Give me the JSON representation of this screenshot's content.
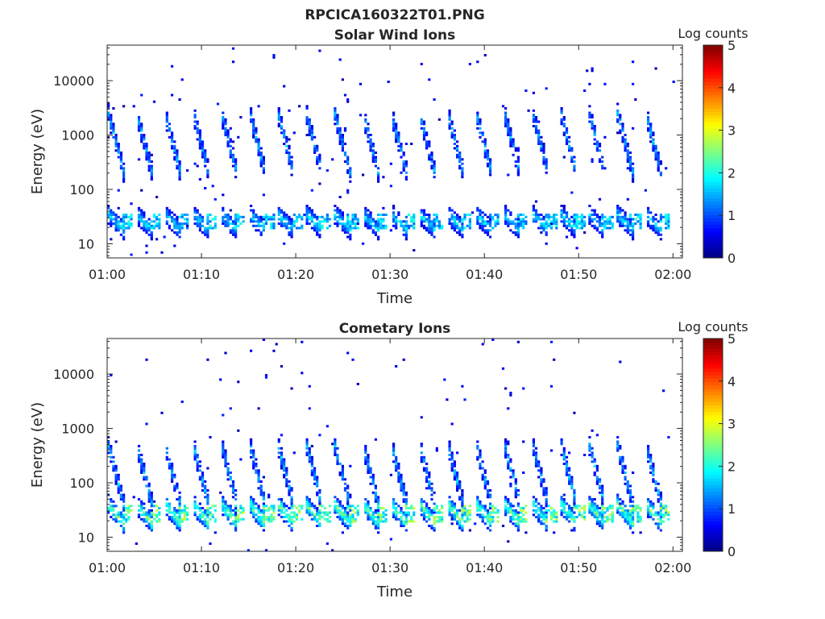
{
  "figure_title": "RPCICA160322T01.PNG",
  "chart_data": [
    {
      "type": "heatmap",
      "title": "Solar Wind Ions",
      "xlabel": "Time",
      "ylabel": "Energy (eV)",
      "y_scale": "log",
      "ylim": [
        5.5,
        45000
      ],
      "xlim": [
        "01:00",
        "02:01"
      ],
      "x_ticks": [
        "01:00",
        "01:10",
        "01:20",
        "01:30",
        "01:40",
        "01:50",
        "02:00"
      ],
      "y_ticks": [
        "10",
        "100",
        "1000",
        "10000"
      ],
      "colorbar": {
        "label": "Log counts",
        "range": [
          0,
          5
        ],
        "ticks": [
          "0",
          "1",
          "2",
          "3",
          "4",
          "5"
        ],
        "colormap": "jet"
      },
      "scan_period_minutes": 3,
      "scan_start_minutes": [
        0,
        3,
        6,
        9,
        12,
        15,
        18,
        21,
        24,
        27,
        30,
        33,
        36,
        39,
        42,
        45,
        48,
        51,
        54,
        57
      ],
      "populations": [
        {
          "name": "",
          "energy_range": [
            200,
            2500
          ],
          "peak_log_counts": 1.8
        },
        {
          "name": "",
          "energy_range": [
            18,
            35
          ],
          "peak_log_counts": 2.1
        }
      ]
    },
    {
      "type": "heatmap",
      "title": "Cometary Ions",
      "xlabel": "Time",
      "ylabel": "Energy (eV)",
      "y_scale": "log",
      "ylim": [
        5.5,
        45000
      ],
      "xlim": [
        "01:00",
        "02:01"
      ],
      "x_ticks": [
        "01:00",
        "01:10",
        "01:20",
        "01:30",
        "01:40",
        "01:50",
        "02:00"
      ],
      "y_ticks": [
        "10",
        "100",
        "1000",
        "10000"
      ],
      "colorbar": {
        "label": "Log counts",
        "range": [
          0,
          5
        ],
        "ticks": [
          "0",
          "1",
          "2",
          "3",
          "4",
          "5"
        ],
        "colormap": "jet"
      },
      "scan_period_minutes": 3,
      "scan_start_minutes": [
        0,
        3,
        6,
        9,
        12,
        15,
        18,
        21,
        24,
        27,
        30,
        33,
        36,
        39,
        42,
        45,
        48,
        51,
        54,
        57
      ],
      "populations": [
        {
          "name": "",
          "energy_range": [
            40,
            500
          ],
          "peak_log_counts": 1.9
        },
        {
          "name": "",
          "energy_range": [
            18,
            40
          ],
          "peak_log_counts": 2.9
        }
      ]
    }
  ]
}
